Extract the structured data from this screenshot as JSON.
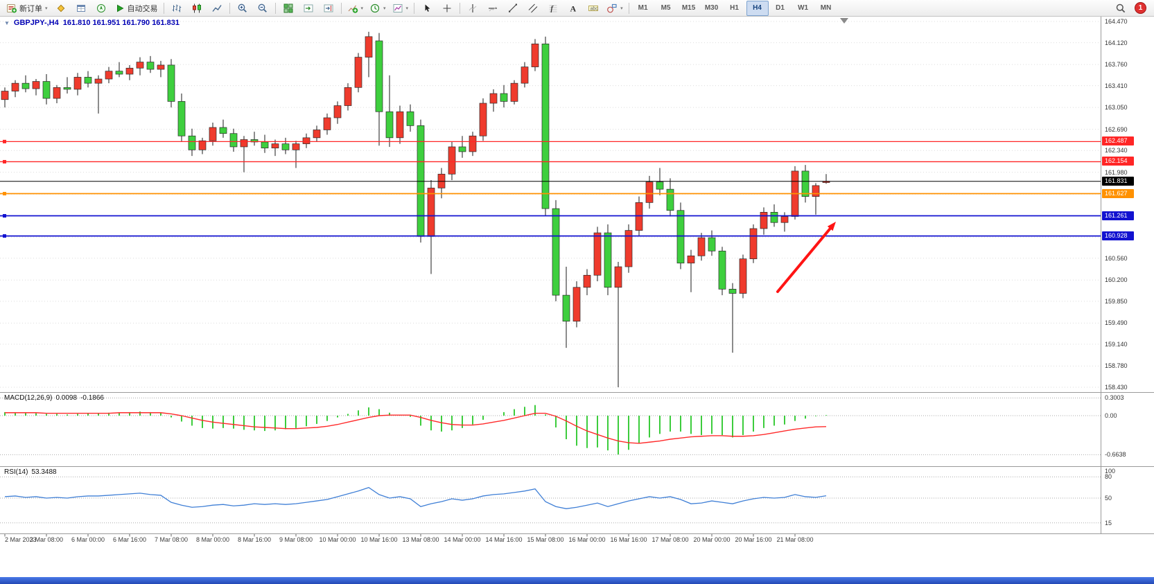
{
  "toolbar": {
    "left": [
      {
        "kind": "button",
        "name": "new-order",
        "icon": "new-order",
        "label": "新订单",
        "caret": true
      },
      {
        "kind": "icon",
        "name": "market-watch"
      },
      {
        "kind": "icon",
        "name": "data-window"
      },
      {
        "kind": "icon",
        "name": "navigator"
      },
      {
        "kind": "button",
        "name": "auto-trading",
        "icon": "play",
        "label": "自动交易"
      },
      {
        "kind": "sep"
      },
      {
        "kind": "icon",
        "name": "bar-chart"
      },
      {
        "kind": "icon",
        "name": "candlestick-chart"
      },
      {
        "kind": "icon",
        "name": "line-chart"
      },
      {
        "kind": "sep"
      },
      {
        "kind": "icon",
        "name": "zoom-in"
      },
      {
        "kind": "icon",
        "name": "zoom-out"
      },
      {
        "kind": "sep"
      },
      {
        "kind": "icon",
        "name": "tile-windows"
      },
      {
        "kind": "icon",
        "name": "auto-scroll"
      },
      {
        "kind": "icon",
        "name": "chart-shift"
      },
      {
        "kind": "sep"
      },
      {
        "kind": "icon",
        "name": "indicators",
        "caret": true
      },
      {
        "kind": "icon",
        "name": "periods",
        "caret": true
      },
      {
        "kind": "icon",
        "name": "templates",
        "caret": true
      },
      {
        "kind": "sep"
      },
      {
        "kind": "icon",
        "name": "cursor"
      },
      {
        "kind": "icon",
        "name": "crosshair"
      },
      {
        "kind": "sep"
      },
      {
        "kind": "icon",
        "name": "vertical-line"
      },
      {
        "kind": "icon",
        "name": "horizontal-line"
      },
      {
        "kind": "icon",
        "name": "trendline"
      },
      {
        "kind": "icon",
        "name": "equidistant-channel"
      },
      {
        "kind": "icon",
        "name": "fibonacci"
      },
      {
        "kind": "icon",
        "name": "text"
      },
      {
        "kind": "icon",
        "name": "text-label"
      },
      {
        "kind": "icon",
        "name": "shapes",
        "caret": true
      },
      {
        "kind": "sep"
      }
    ],
    "timeframes": [
      "M1",
      "M5",
      "M15",
      "M30",
      "H1",
      "H4",
      "D1",
      "W1",
      "MN"
    ],
    "active_timeframe": "H4",
    "right_badge": "1"
  },
  "chart_data": {
    "type": "candlestick",
    "title_symbol": "GBPJPY-,H4",
    "title_ohlc": "161.810 161.951 161.790 161.831",
    "current_bar": {
      "open": "161.810",
      "high": "161.951",
      "low": "161.790",
      "close": "161.831"
    },
    "price_axis": {
      "max": 164.47,
      "min": 158.43,
      "labels": [
        "164.470",
        "164.120",
        "163.760",
        "163.410",
        "163.050",
        "162.690",
        "162.340",
        "161.980",
        "161.620",
        "161.260",
        "160.910",
        "160.560",
        "160.200",
        "159.850",
        "159.490",
        "159.140",
        "158.780",
        "158.430"
      ]
    },
    "colors": {
      "up": "#ef3b2d",
      "down": "#3ecf3e",
      "wick": "#1a1a1a",
      "grid": "#dcdcdc"
    },
    "hlines": [
      {
        "price": 162.487,
        "label": "162.487",
        "color": "#ff2626",
        "width": 1.3,
        "current": false
      },
      {
        "price": 162.154,
        "label": "162.154",
        "color": "#ff2626",
        "width": 1.3,
        "current": false
      },
      {
        "price": 161.831,
        "label": "161.831",
        "color": "#000000",
        "width": 1,
        "current": true
      },
      {
        "price": 161.627,
        "label": "161.627",
        "color": "#ff9100",
        "width": 1.8,
        "current": false
      },
      {
        "price": 161.261,
        "label": "161.261",
        "color": "#1212d0",
        "width": 1.8,
        "current": false
      },
      {
        "price": 160.928,
        "label": "160.928",
        "color": "#1212d0",
        "width": 1.8,
        "current": false
      }
    ],
    "annotation_arrow": {
      "from": [
        1122,
        421
      ],
      "to": [
        1206,
        320
      ],
      "color": "#ff1414"
    },
    "candles": [
      [
        163.18,
        163.38,
        163.05,
        163.32
      ],
      [
        163.32,
        163.5,
        163.22,
        163.45
      ],
      [
        163.45,
        163.58,
        163.3,
        163.36
      ],
      [
        163.36,
        163.52,
        163.25,
        163.48
      ],
      [
        163.48,
        163.6,
        163.1,
        163.2
      ],
      [
        163.2,
        163.42,
        163.12,
        163.38
      ],
      [
        163.38,
        163.55,
        163.28,
        163.35
      ],
      [
        163.35,
        163.62,
        163.25,
        163.55
      ],
      [
        163.55,
        163.65,
        163.38,
        163.45
      ],
      [
        163.45,
        163.58,
        162.95,
        163.52
      ],
      [
        163.52,
        163.72,
        163.45,
        163.65
      ],
      [
        163.65,
        163.8,
        163.55,
        163.6
      ],
      [
        163.6,
        163.75,
        163.5,
        163.7
      ],
      [
        163.7,
        163.88,
        163.58,
        163.8
      ],
      [
        163.8,
        163.9,
        163.62,
        163.68
      ],
      [
        163.68,
        163.82,
        163.55,
        163.75
      ],
      [
        163.75,
        163.85,
        163.05,
        163.15
      ],
      [
        163.15,
        163.28,
        162.48,
        162.58
      ],
      [
        162.58,
        162.7,
        162.25,
        162.35
      ],
      [
        162.35,
        162.55,
        162.28,
        162.5
      ],
      [
        162.5,
        162.8,
        162.42,
        162.72
      ],
      [
        162.72,
        162.85,
        162.55,
        162.62
      ],
      [
        162.62,
        162.7,
        162.32,
        162.4
      ],
      [
        162.4,
        162.58,
        161.98,
        162.52
      ],
      [
        162.52,
        162.65,
        162.42,
        162.48
      ],
      [
        162.48,
        162.6,
        162.3,
        162.38
      ],
      [
        162.38,
        162.52,
        162.25,
        162.45
      ],
      [
        162.45,
        162.55,
        162.28,
        162.35
      ],
      [
        162.35,
        162.5,
        162.05,
        162.45
      ],
      [
        162.45,
        162.62,
        162.38,
        162.55
      ],
      [
        162.55,
        162.75,
        162.48,
        162.68
      ],
      [
        162.68,
        162.95,
        162.6,
        162.88
      ],
      [
        162.88,
        163.15,
        162.78,
        163.08
      ],
      [
        163.08,
        163.45,
        163.0,
        163.38
      ],
      [
        163.38,
        163.95,
        163.3,
        163.88
      ],
      [
        163.88,
        164.3,
        163.55,
        164.22
      ],
      [
        164.15,
        164.28,
        162.42,
        162.98
      ],
      [
        162.98,
        163.58,
        162.4,
        162.55
      ],
      [
        162.55,
        163.08,
        162.45,
        162.98
      ],
      [
        162.98,
        163.1,
        162.65,
        162.75
      ],
      [
        162.75,
        162.85,
        160.82,
        160.92
      ],
      [
        160.92,
        161.85,
        160.3,
        161.72
      ],
      [
        161.72,
        162.05,
        161.55,
        161.95
      ],
      [
        161.95,
        162.48,
        161.85,
        162.4
      ],
      [
        162.4,
        162.58,
        162.22,
        162.32
      ],
      [
        162.32,
        162.65,
        162.25,
        162.58
      ],
      [
        162.58,
        163.2,
        162.5,
        163.12
      ],
      [
        163.12,
        163.35,
        162.98,
        163.28
      ],
      [
        163.28,
        163.42,
        163.05,
        163.15
      ],
      [
        163.15,
        163.5,
        163.1,
        163.45
      ],
      [
        163.45,
        163.8,
        163.38,
        163.72
      ],
      [
        163.72,
        164.18,
        163.65,
        164.1
      ],
      [
        164.1,
        164.22,
        161.26,
        161.38
      ],
      [
        161.38,
        161.52,
        159.85,
        159.95
      ],
      [
        159.95,
        160.42,
        159.08,
        159.52
      ],
      [
        159.52,
        160.18,
        159.42,
        160.08
      ],
      [
        160.08,
        160.38,
        159.95,
        160.28
      ],
      [
        160.28,
        161.08,
        160.18,
        160.98
      ],
      [
        160.98,
        161.12,
        159.95,
        160.08
      ],
      [
        160.08,
        160.5,
        158.43,
        160.42
      ],
      [
        160.42,
        161.12,
        160.32,
        161.02
      ],
      [
        161.02,
        161.58,
        160.92,
        161.48
      ],
      [
        161.48,
        161.92,
        161.38,
        161.82
      ],
      [
        161.82,
        162.05,
        161.6,
        161.7
      ],
      [
        161.7,
        161.88,
        161.25,
        161.35
      ],
      [
        161.35,
        161.48,
        160.38,
        160.48
      ],
      [
        160.48,
        160.7,
        160.0,
        160.6
      ],
      [
        160.6,
        160.98,
        160.52,
        160.9
      ],
      [
        160.9,
        161.02,
        160.6,
        160.68
      ],
      [
        160.68,
        160.75,
        159.95,
        160.05
      ],
      [
        160.05,
        160.15,
        159.0,
        159.98
      ],
      [
        159.98,
        160.62,
        159.9,
        160.55
      ],
      [
        160.55,
        161.12,
        160.48,
        161.05
      ],
      [
        161.05,
        161.4,
        160.95,
        161.32
      ],
      [
        161.32,
        161.45,
        161.08,
        161.15
      ],
      [
        161.15,
        161.32,
        161.0,
        161.25
      ],
      [
        161.25,
        162.08,
        161.2,
        162.0
      ],
      [
        162.0,
        162.1,
        161.48,
        161.58
      ],
      [
        161.58,
        161.8,
        161.28,
        161.76
      ],
      [
        161.81,
        161.951,
        161.79,
        161.831
      ]
    ],
    "time_axis": {
      "label_every": 4,
      "labels": [
        "2 Mar 2023",
        "3 Mar 08:00",
        "6 Mar 00:00",
        "6 Mar 16:00",
        "7 Mar 08:00",
        "8 Mar 00:00",
        "8 Mar 16:00",
        "9 Mar 08:00",
        "10 Mar 00:00",
        "10 Mar 16:00",
        "13 Mar 08:00",
        "14 Mar 00:00",
        "14 Mar 16:00",
        "15 Mar 08:00",
        "16 Mar 00:00",
        "16 Mar 16:00",
        "17 Mar 08:00",
        "20 Mar 00:00",
        "20 Mar 16:00",
        "21 Mar 08:00"
      ]
    },
    "macd": {
      "label": "MACD(12,26,9)",
      "value_main": "0.0098",
      "value_signal": "-0.1866",
      "hist_color": "#3ccc3c",
      "signal_color": "#ff2a2a",
      "scale": [
        {
          "v": 0.3003,
          "t": "0.3003"
        },
        {
          "v": 0,
          "t": "0.00"
        },
        {
          "v": -0.6638,
          "t": "-0.6638"
        }
      ],
      "histogram": [
        0.06,
        0.05,
        0.05,
        0.04,
        0.03,
        0.03,
        0.02,
        0.03,
        0.04,
        0.04,
        0.05,
        0.05,
        0.06,
        0.07,
        0.06,
        0.05,
        -0.03,
        -0.1,
        -0.17,
        -0.21,
        -0.22,
        -0.21,
        -0.22,
        -0.24,
        -0.25,
        -0.26,
        -0.25,
        -0.23,
        -0.21,
        -0.18,
        -0.14,
        -0.09,
        -0.03,
        0.03,
        0.09,
        0.14,
        0.11,
        0.05,
        0.01,
        -0.02,
        -0.17,
        -0.25,
        -0.27,
        -0.25,
        -0.21,
        -0.15,
        -0.07,
        0.0,
        0.06,
        0.11,
        0.15,
        0.18,
        0.02,
        -0.2,
        -0.4,
        -0.51,
        -0.55,
        -0.54,
        -0.59,
        -0.66,
        -0.58,
        -0.47,
        -0.37,
        -0.31,
        -0.27,
        -0.27,
        -0.31,
        -0.33,
        -0.31,
        -0.33,
        -0.37,
        -0.33,
        -0.27,
        -0.21,
        -0.17,
        -0.15,
        -0.09,
        -0.05,
        -0.01,
        0.0098
      ],
      "signal": [
        0.05,
        0.05,
        0.05,
        0.05,
        0.04,
        0.04,
        0.04,
        0.04,
        0.04,
        0.04,
        0.04,
        0.05,
        0.05,
        0.05,
        0.05,
        0.05,
        0.03,
        0.0,
        -0.04,
        -0.08,
        -0.11,
        -0.13,
        -0.15,
        -0.17,
        -0.19,
        -0.2,
        -0.21,
        -0.22,
        -0.22,
        -0.21,
        -0.2,
        -0.18,
        -0.15,
        -0.11,
        -0.07,
        -0.03,
        0.0,
        0.01,
        0.01,
        0.01,
        -0.03,
        -0.08,
        -0.12,
        -0.15,
        -0.16,
        -0.16,
        -0.14,
        -0.11,
        -0.08,
        -0.04,
        0.0,
        0.04,
        0.04,
        -0.01,
        -0.09,
        -0.18,
        -0.26,
        -0.32,
        -0.38,
        -0.43,
        -0.46,
        -0.47,
        -0.45,
        -0.43,
        -0.4,
        -0.38,
        -0.36,
        -0.35,
        -0.34,
        -0.34,
        -0.35,
        -0.35,
        -0.34,
        -0.32,
        -0.29,
        -0.26,
        -0.23,
        -0.21,
        -0.19,
        -0.1866
      ]
    },
    "rsi": {
      "label": "RSI(14)",
      "value": "53.3488",
      "color": "#3f7fd6",
      "scale": [
        {
          "v": 100,
          "t": "100"
        },
        {
          "v": 80,
          "t": "80"
        },
        {
          "v": 50,
          "t": "50"
        },
        {
          "v": 15,
          "t": "15"
        }
      ],
      "levels": [
        80,
        50,
        15
      ],
      "values": [
        52,
        53,
        51,
        52,
        50,
        51,
        50,
        52,
        53,
        53,
        54,
        55,
        56,
        57,
        55,
        54,
        44,
        40,
        37,
        38,
        40,
        41,
        39,
        40,
        42,
        41,
        42,
        41,
        42,
        44,
        46,
        48,
        52,
        56,
        60,
        65,
        55,
        50,
        52,
        49,
        38,
        42,
        45,
        49,
        47,
        49,
        53,
        55,
        56,
        58,
        60,
        63,
        45,
        38,
        35,
        37,
        40,
        43,
        38,
        42,
        46,
        49,
        52,
        50,
        52,
        48,
        42,
        43,
        46,
        44,
        42,
        46,
        49,
        51,
        50,
        51,
        55,
        52,
        51,
        53.3488
      ]
    }
  }
}
